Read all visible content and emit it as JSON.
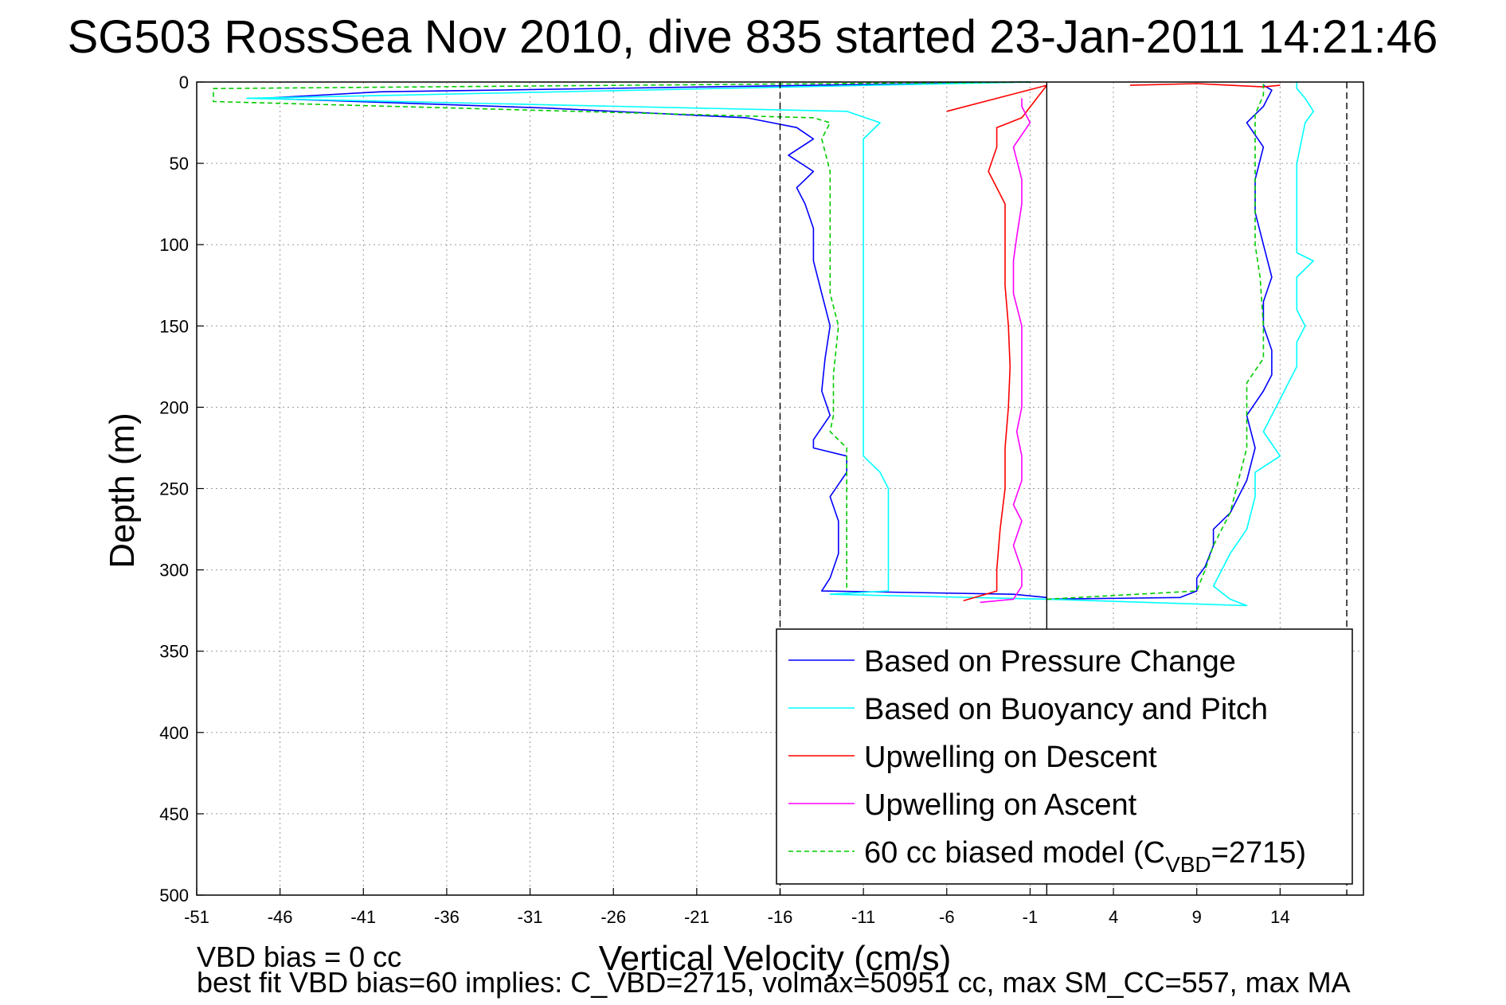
{
  "chart_data": {
    "type": "line",
    "title": "SG503 RossSea Nov 2010, dive 835 started 23-Jan-2011 14:21:46",
    "xlabel": "Vertical Velocity (cm/s)",
    "ylabel": "Depth (m)",
    "xlim": [
      -51,
      19
    ],
    "ylim": [
      0,
      500
    ],
    "y_reversed": true,
    "xticks": [
      -51,
      -46,
      -41,
      -36,
      -31,
      -26,
      -21,
      -16,
      -11,
      -6,
      -1,
      4,
      9,
      14
    ],
    "yticks": [
      0,
      50,
      100,
      150,
      200,
      250,
      300,
      350,
      400,
      450,
      500
    ],
    "grid": true,
    "legend_position": "bottom-right",
    "vertical_lines": [
      {
        "x": -16,
        "style": "dashed",
        "color": "#000000"
      },
      {
        "x": 0,
        "style": "solid",
        "color": "#000000"
      },
      {
        "x": 18,
        "style": "dashed",
        "color": "#000000"
      }
    ],
    "series": [
      {
        "name": "Based on Pressure Change",
        "color": "#0000ff",
        "style": "solid",
        "points": [
          [
            -1,
            0
          ],
          [
            -40,
            6
          ],
          [
            -47,
            10
          ],
          [
            -30,
            16
          ],
          [
            -18,
            22
          ],
          [
            -15,
            28
          ],
          [
            -14,
            35
          ],
          [
            -15.5,
            45
          ],
          [
            -14,
            55
          ],
          [
            -15,
            65
          ],
          [
            -14.5,
            75
          ],
          [
            -14,
            90
          ],
          [
            -14,
            110
          ],
          [
            -13.5,
            130
          ],
          [
            -13,
            150
          ],
          [
            -13.3,
            170
          ],
          [
            -13.5,
            190
          ],
          [
            -13,
            205
          ],
          [
            -14,
            220
          ],
          [
            -14,
            225
          ],
          [
            -12,
            230
          ],
          [
            -12,
            240
          ],
          [
            -13,
            255
          ],
          [
            -12.5,
            270
          ],
          [
            -12.5,
            290
          ],
          [
            -13,
            305
          ],
          [
            -13.5,
            313
          ],
          [
            -2,
            315
          ],
          [
            0,
            317
          ]
        ]
      },
      {
        "name": "Based on Pressure Change",
        "color": "#0000ff",
        "style": "solid",
        "points": [
          [
            0,
            318
          ],
          [
            8,
            317
          ],
          [
            9,
            313
          ],
          [
            9,
            305
          ],
          [
            9.5,
            298
          ],
          [
            10,
            285
          ],
          [
            10,
            275
          ],
          [
            11,
            265
          ],
          [
            12,
            245
          ],
          [
            12.5,
            225
          ],
          [
            12,
            205
          ],
          [
            13,
            190
          ],
          [
            13.5,
            180
          ],
          [
            13.5,
            165
          ],
          [
            13,
            150
          ],
          [
            13,
            135
          ],
          [
            13.5,
            120
          ],
          [
            13,
            100
          ],
          [
            12.5,
            80
          ],
          [
            12.5,
            60
          ],
          [
            13,
            40
          ],
          [
            12,
            25
          ],
          [
            13,
            15
          ],
          [
            13.5,
            5
          ],
          [
            13,
            2
          ]
        ]
      },
      {
        "name": "Based on Buoyancy and Pitch",
        "color": "#00ffff",
        "style": "solid",
        "points": [
          [
            -1,
            0
          ],
          [
            -48,
            10
          ],
          [
            -12,
            18
          ],
          [
            -10,
            25
          ],
          [
            -11,
            35
          ],
          [
            -11,
            60
          ],
          [
            -11,
            90
          ],
          [
            -11,
            120
          ],
          [
            -11,
            150
          ],
          [
            -11,
            175
          ],
          [
            -11,
            200
          ],
          [
            -11,
            215
          ],
          [
            -11,
            230
          ],
          [
            -10,
            240
          ],
          [
            -9.5,
            250
          ],
          [
            -9.5,
            275
          ],
          [
            -9.5,
            300
          ],
          [
            -9.5,
            313
          ],
          [
            -13,
            315
          ],
          [
            0,
            318
          ]
        ]
      },
      {
        "name": "Based on Buoyancy and Pitch",
        "color": "#00ffff",
        "style": "solid",
        "points": [
          [
            0,
            318
          ],
          [
            12,
            322
          ],
          [
            11,
            318
          ],
          [
            10,
            310
          ],
          [
            10.5,
            300
          ],
          [
            11,
            290
          ],
          [
            12,
            275
          ],
          [
            12.5,
            255
          ],
          [
            12.5,
            240
          ],
          [
            14,
            230
          ],
          [
            13,
            215
          ],
          [
            14,
            195
          ],
          [
            15,
            175
          ],
          [
            15,
            160
          ],
          [
            15.5,
            150
          ],
          [
            15,
            140
          ],
          [
            15,
            120
          ],
          [
            16,
            110
          ],
          [
            15,
            105
          ],
          [
            15,
            80
          ],
          [
            15,
            50
          ],
          [
            15.5,
            25
          ],
          [
            16,
            18
          ],
          [
            15.5,
            10
          ],
          [
            15,
            4
          ],
          [
            15,
            0
          ]
        ]
      },
      {
        "name": "Upwelling on Descent",
        "color": "#ff0000",
        "style": "solid",
        "points": [
          [
            -6,
            18
          ],
          [
            0,
            2
          ],
          [
            -1.5,
            22
          ],
          [
            -3,
            28
          ],
          [
            -3,
            40
          ],
          [
            -3.5,
            55
          ],
          [
            -2.5,
            75
          ],
          [
            -2.5,
            100
          ],
          [
            -2.5,
            125
          ],
          [
            -2.3,
            150
          ],
          [
            -2.2,
            175
          ],
          [
            -2.3,
            200
          ],
          [
            -2.5,
            225
          ],
          [
            -2.5,
            250
          ],
          [
            -2.8,
            275
          ],
          [
            -3,
            300
          ],
          [
            -3,
            313
          ],
          [
            -5,
            319
          ]
        ]
      },
      {
        "name": "Upwelling on Descent",
        "color": "#ff0000",
        "style": "solid",
        "points": [
          [
            5,
            2
          ],
          [
            9,
            1
          ],
          [
            13,
            3
          ],
          [
            14,
            2
          ]
        ]
      },
      {
        "name": "Upwelling on Ascent",
        "color": "#ff00ff",
        "style": "solid",
        "points": [
          [
            -4,
            320
          ],
          [
            -2,
            318
          ],
          [
            -1.5,
            310
          ],
          [
            -1.5,
            300
          ],
          [
            -2,
            285
          ],
          [
            -1.5,
            270
          ],
          [
            -2,
            260
          ],
          [
            -1.5,
            245
          ],
          [
            -1.5,
            230
          ],
          [
            -1.8,
            215
          ],
          [
            -1.5,
            200
          ],
          [
            -1.5,
            185
          ],
          [
            -1.5,
            170
          ],
          [
            -1.5,
            150
          ],
          [
            -2,
            130
          ],
          [
            -2,
            110
          ],
          [
            -1.8,
            95
          ],
          [
            -1.5,
            75
          ],
          [
            -1.5,
            60
          ],
          [
            -2,
            40
          ],
          [
            -1,
            25
          ],
          [
            -1.5,
            15
          ],
          [
            -1.5,
            10
          ]
        ]
      },
      {
        "name": "60 cc biased model (C_VBD=2715)",
        "color": "#00cc00",
        "style": "dashed",
        "points": [
          [
            -1,
            0
          ],
          [
            -50,
            4
          ],
          [
            -50,
            12
          ],
          [
            -14,
            22
          ],
          [
            -13,
            25
          ],
          [
            -13.5,
            35
          ],
          [
            -13,
            55
          ],
          [
            -13,
            70
          ],
          [
            -13,
            90
          ],
          [
            -13,
            110
          ],
          [
            -13,
            130
          ],
          [
            -12.5,
            150
          ],
          [
            -12.8,
            180
          ],
          [
            -12.8,
            205
          ],
          [
            -13,
            215
          ],
          [
            -12,
            225
          ],
          [
            -12,
            240
          ],
          [
            -12,
            270
          ],
          [
            -12,
            300
          ],
          [
            -12,
            313
          ]
        ]
      },
      {
        "name": "60 cc biased model (C_VBD=2715)",
        "color": "#00cc00",
        "style": "dashed",
        "points": [
          [
            0,
            318
          ],
          [
            9,
            313
          ],
          [
            9.5,
            300
          ],
          [
            10,
            285
          ],
          [
            11,
            265
          ],
          [
            11.5,
            245
          ],
          [
            12,
            225
          ],
          [
            12,
            205
          ],
          [
            12,
            185
          ],
          [
            13,
            170
          ],
          [
            13,
            150
          ],
          [
            12.8,
            120
          ],
          [
            12.5,
            100
          ],
          [
            12.5,
            80
          ],
          [
            12.5,
            60
          ],
          [
            12.5,
            40
          ],
          [
            12.5,
            20
          ],
          [
            13,
            8
          ],
          [
            13,
            0
          ]
        ]
      }
    ],
    "legend": {
      "entries": [
        {
          "label": "Based on Pressure Change",
          "color": "#0000ff",
          "style": "solid"
        },
        {
          "label": "Based on Buoyancy and Pitch",
          "color": "#00ffff",
          "style": "solid"
        },
        {
          "label": "Upwelling on Descent",
          "color": "#ff0000",
          "style": "solid"
        },
        {
          "label": "Upwelling on Ascent",
          "color": "#ff00ff",
          "style": "solid"
        },
        {
          "label_main": "60 cc biased model (C",
          "label_sub": "VBD",
          "label_tail": "=2715)",
          "color": "#00cc00",
          "style": "dashed"
        }
      ]
    },
    "footer": {
      "line1": "VBD bias = 0 cc",
      "line2": "best fit VBD bias=60 implies: C_VBD=2715, volmax=50951 cc, max SM_CC=557, max MA"
    }
  }
}
